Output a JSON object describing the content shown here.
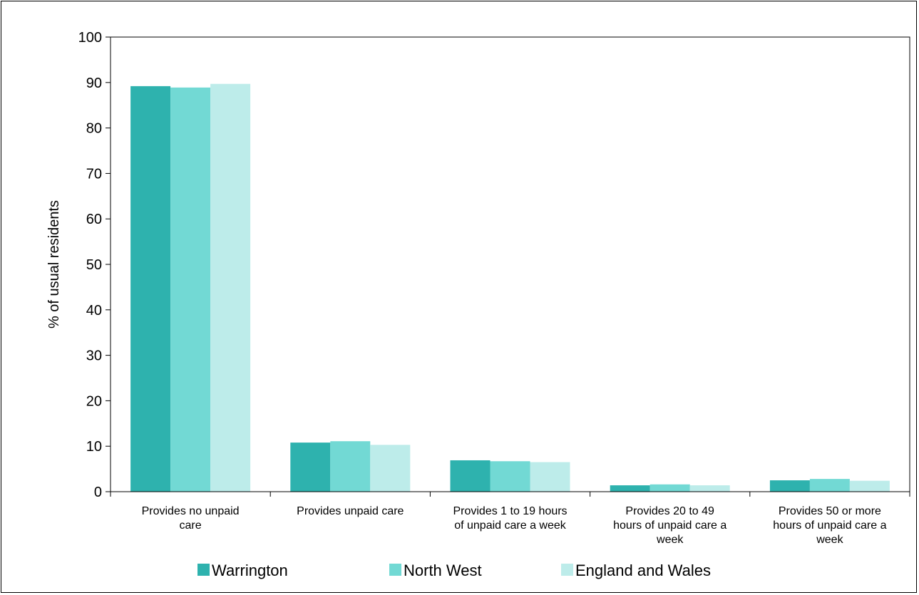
{
  "chart_data": {
    "type": "bar",
    "title": "",
    "xlabel": "",
    "ylabel": "% of usual residents",
    "ylim": [
      0,
      100
    ],
    "yticks": [
      0,
      10,
      20,
      30,
      40,
      50,
      60,
      70,
      80,
      90,
      100
    ],
    "grid": false,
    "legend_position": "bottom",
    "categories": [
      [
        "Provides no unpaid",
        "care"
      ],
      [
        "Provides unpaid care"
      ],
      [
        "Provides 1 to 19 hours",
        "of unpaid care a week"
      ],
      [
        "Provides 20 to 49",
        "hours of unpaid care a",
        "week"
      ],
      [
        "Provides 50 or more",
        "hours of unpaid care a",
        "week"
      ]
    ],
    "series": [
      {
        "name": "Warrington",
        "color": "#2eb2ae",
        "values": [
          89.2,
          10.8,
          6.9,
          1.4,
          2.5
        ]
      },
      {
        "name": "North West",
        "color": "#72d9d4",
        "values": [
          88.9,
          11.1,
          6.7,
          1.6,
          2.8
        ]
      },
      {
        "name": "England and Wales",
        "color": "#bdecea",
        "values": [
          89.7,
          10.3,
          6.5,
          1.4,
          2.4
        ]
      }
    ]
  }
}
